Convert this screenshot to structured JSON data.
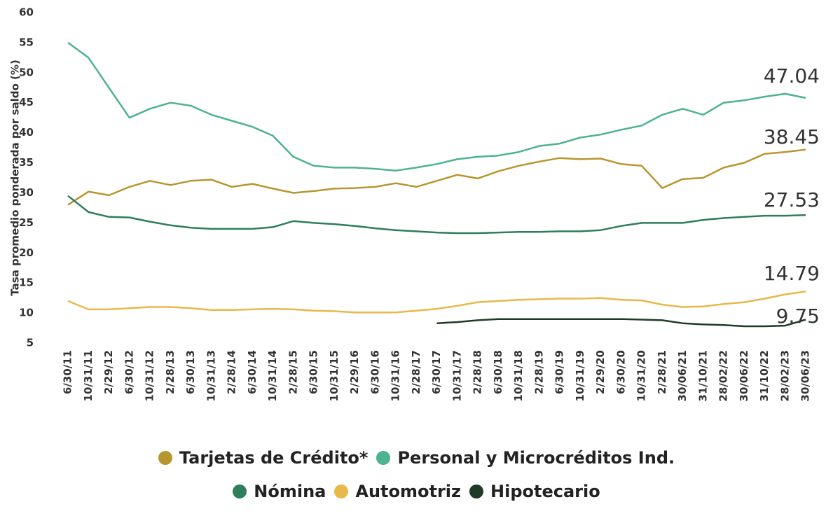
{
  "chart_data": {
    "type": "line",
    "y_label": "Tasa promedio ponderada por saldo (%)",
    "categories": [
      "6/30/11",
      "10/31/11",
      "2/29/12",
      "6/30/12",
      "10/31/12",
      "2/28/13",
      "6/30/13",
      "10/31/13",
      "2/28/14",
      "6/30/14",
      "10/31/14",
      "2/28/15",
      "6/30/15",
      "10/31/15",
      "2/29/16",
      "6/30/16",
      "10/31/16",
      "2/28/17",
      "6/30/17",
      "10/31/17",
      "2/28/18",
      "6/30/18",
      "10/31/18",
      "2/28/19",
      "6/30/19",
      "10/31/19",
      "2/29/20",
      "6/30/20",
      "10/31/20",
      "2/28/21",
      "30/06/21",
      "31/10/21",
      "28/02/22",
      "30/06/22",
      "31/10/22",
      "28/02/23",
      "30/06/23"
    ],
    "series": [
      {
        "name": "Tarjetas de Crédito*",
        "color": "#b8962e",
        "values": [
          28,
          30.2,
          29.6,
          31,
          32,
          31.3,
          32,
          32.2,
          31,
          31.5,
          30.7,
          30,
          30.3,
          30.7,
          30.8,
          31,
          31.6,
          31,
          32,
          33,
          32.4,
          33.6,
          34.5,
          35.2,
          35.8,
          35.6,
          35.7,
          34.8,
          34.5,
          30.8,
          32.3,
          32.5,
          34.2,
          35,
          36.5,
          36.8,
          37.2
        ]
      },
      {
        "name": "Personal y Microcréditos Ind.",
        "color": "#4db38e",
        "values": [
          55,
          52.5,
          47.5,
          42.5,
          44,
          45,
          44.5,
          43,
          42,
          41,
          39.5,
          36,
          34.5,
          34.2,
          34.2,
          34,
          33.7,
          34.2,
          34.8,
          35.6,
          36,
          36.2,
          36.8,
          37.8,
          38.2,
          39.2,
          39.7,
          40.5,
          41.2,
          43,
          44,
          43,
          45,
          45.4,
          46,
          46.5,
          45.8
        ]
      },
      {
        "name": "Nómina",
        "color": "#2e7d5b",
        "values": [
          29.5,
          26.8,
          26,
          25.9,
          25.2,
          24.6,
          24.2,
          24,
          24,
          24,
          24.3,
          25.3,
          25,
          24.8,
          24.5,
          24.1,
          23.8,
          23.6,
          23.4,
          23.3,
          23.3,
          23.4,
          23.5,
          23.5,
          23.6,
          23.6,
          23.8,
          24.5,
          25,
          25,
          25,
          25.5,
          25.8,
          26,
          26.2,
          26.2,
          26.3
        ]
      },
      {
        "name": "Automotriz",
        "color": "#e8b84a",
        "values": [
          12,
          10.6,
          10.6,
          10.8,
          11,
          11,
          10.8,
          10.5,
          10.5,
          10.6,
          10.7,
          10.6,
          10.4,
          10.3,
          10.1,
          10.1,
          10.1,
          10.4,
          10.7,
          11.2,
          11.8,
          12,
          12.2,
          12.3,
          12.4,
          12.4,
          12.5,
          12.2,
          12.1,
          11.4,
          11,
          11.1,
          11.5,
          11.8,
          12.4,
          13.1,
          13.6
        ]
      },
      {
        "name": "Hipotecario",
        "color": "#1f3b26",
        "values": [
          null,
          null,
          null,
          null,
          null,
          null,
          null,
          null,
          null,
          null,
          null,
          null,
          null,
          null,
          null,
          null,
          null,
          null,
          8.3,
          8.5,
          8.8,
          9,
          9,
          9,
          9,
          9,
          9,
          9,
          8.9,
          8.8,
          8.3,
          8.1,
          8,
          7.8,
          7.8,
          7.9,
          8.9
        ]
      }
    ],
    "annotations": [
      "47.04",
      "38.45",
      "27.53",
      "14.79",
      "9.75"
    ],
    "ylim": [
      5,
      60
    ],
    "yticks": [
      5,
      10,
      15,
      20,
      25,
      30,
      35,
      40,
      45,
      50,
      55,
      60
    ],
    "grid": false
  }
}
